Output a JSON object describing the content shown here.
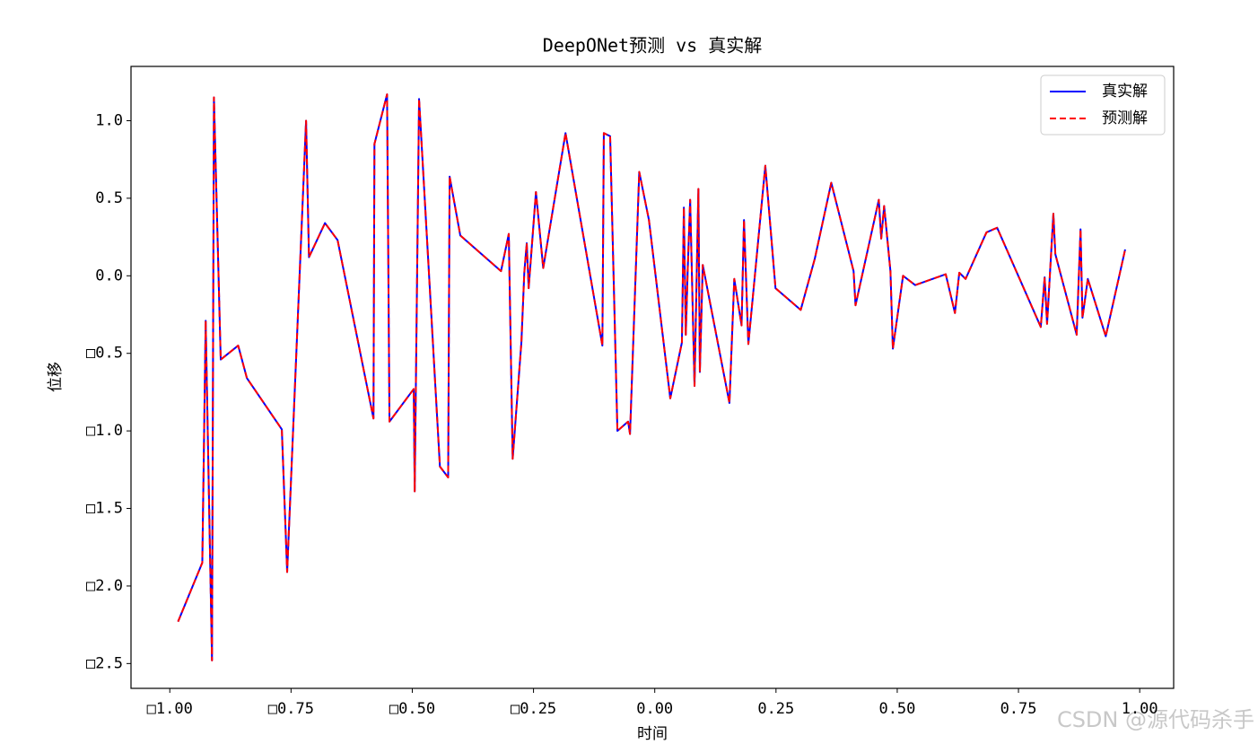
{
  "chart_data": {
    "type": "line",
    "title": "DeepONet预测 vs 真实解",
    "xlabel": "时间",
    "ylabel": "位移",
    "watermark": "CSDN @源代码杀手",
    "legend": "upper right",
    "x": [
      -0.983,
      -0.933,
      -0.926,
      -0.913,
      -0.909,
      -0.895,
      -0.859,
      -0.841,
      -0.769,
      -0.758,
      -0.719,
      -0.713,
      -0.68,
      -0.654,
      -0.58,
      -0.578,
      -0.552,
      -0.547,
      -0.497,
      -0.495,
      -0.486,
      -0.443,
      -0.426,
      -0.423,
      -0.401,
      -0.317,
      -0.301,
      -0.293,
      -0.275,
      -0.269,
      -0.264,
      -0.26,
      -0.245,
      -0.23,
      -0.184,
      -0.108,
      -0.105,
      -0.092,
      -0.077,
      -0.055,
      -0.051,
      -0.032,
      -0.012,
      0.032,
      0.056,
      0.06,
      0.064,
      0.068,
      0.073,
      0.082,
      0.09,
      0.093,
      0.099,
      0.154,
      0.164,
      0.179,
      0.184,
      0.193,
      0.228,
      0.249,
      0.301,
      0.33,
      0.364,
      0.41,
      0.414,
      0.462,
      0.467,
      0.473,
      0.486,
      0.491,
      0.512,
      0.537,
      0.6,
      0.619,
      0.628,
      0.641,
      0.684,
      0.706,
      0.796,
      0.804,
      0.809,
      0.822,
      0.826,
      0.87,
      0.878,
      0.882,
      0.893,
      0.93,
      0.97
    ],
    "series": [
      {
        "name": "真实解",
        "color": "#0000ff",
        "dash": false,
        "values": [
          -2.23,
          -1.85,
          -0.29,
          -2.48,
          1.15,
          -0.54,
          -0.45,
          -0.66,
          -0.99,
          -1.91,
          1.0,
          0.12,
          0.34,
          0.23,
          -0.92,
          0.85,
          1.17,
          -0.94,
          -0.73,
          -1.39,
          1.14,
          -1.23,
          -1.3,
          0.64,
          0.26,
          0.03,
          0.27,
          -1.18,
          -0.43,
          0.02,
          0.21,
          -0.08,
          0.54,
          0.05,
          0.92,
          -0.45,
          0.92,
          0.9,
          -1.0,
          -0.94,
          -1.02,
          0.67,
          0.36,
          -0.79,
          -0.43,
          0.44,
          -0.38,
          0.04,
          0.49,
          -0.71,
          0.56,
          -0.62,
          0.07,
          -0.82,
          -0.02,
          -0.32,
          0.36,
          -0.44,
          0.71,
          -0.08,
          -0.22,
          0.11,
          0.6,
          0.03,
          -0.19,
          0.49,
          0.24,
          0.45,
          0.03,
          -0.47,
          0.0,
          -0.06,
          0.01,
          -0.24,
          0.02,
          -0.02,
          0.28,
          0.31,
          -0.33,
          -0.01,
          -0.31,
          0.4,
          0.14,
          -0.38,
          0.3,
          -0.27,
          -0.02,
          -0.39,
          0.17
        ]
      },
      {
        "name": "预测解",
        "color": "#ff0000",
        "dash": true,
        "values": [
          -2.23,
          -1.85,
          -0.29,
          -2.48,
          1.15,
          -0.54,
          -0.45,
          -0.66,
          -0.99,
          -1.91,
          1.0,
          0.12,
          0.34,
          0.23,
          -0.92,
          0.85,
          1.17,
          -0.94,
          -0.73,
          -1.39,
          1.14,
          -1.23,
          -1.3,
          0.64,
          0.26,
          0.03,
          0.27,
          -1.18,
          -0.43,
          0.02,
          0.21,
          -0.08,
          0.54,
          0.05,
          0.92,
          -0.45,
          0.92,
          0.9,
          -1.0,
          -0.94,
          -1.02,
          0.67,
          0.36,
          -0.79,
          -0.43,
          0.44,
          -0.38,
          0.04,
          0.49,
          -0.71,
          0.56,
          -0.62,
          0.07,
          -0.82,
          -0.02,
          -0.32,
          0.36,
          -0.44,
          0.71,
          -0.08,
          -0.22,
          0.11,
          0.6,
          0.03,
          -0.19,
          0.49,
          0.24,
          0.45,
          0.03,
          -0.47,
          0.0,
          -0.06,
          0.01,
          -0.24,
          0.02,
          -0.02,
          0.28,
          0.31,
          -0.33,
          -0.01,
          -0.31,
          0.4,
          0.14,
          -0.38,
          0.3,
          -0.27,
          -0.02,
          -0.39,
          0.17
        ]
      }
    ],
    "xlim": [
      -1.08,
      1.07
    ],
    "ylim": [
      -2.66,
      1.35
    ],
    "xticks": [
      {
        "value": -1,
        "label": "□1.00"
      },
      {
        "value": -0.75,
        "label": "□0.75"
      },
      {
        "value": -0.5,
        "label": "□0.50"
      },
      {
        "value": -0.25,
        "label": "□0.25"
      },
      {
        "value": 0,
        "label": "0.00"
      },
      {
        "value": 0.25,
        "label": "0.25"
      },
      {
        "value": 0.5,
        "label": "0.50"
      },
      {
        "value": 0.75,
        "label": "0.75"
      },
      {
        "value": 1,
        "label": "1.00"
      }
    ],
    "yticks": [
      {
        "value": 1,
        "label": "1.0"
      },
      {
        "value": 0.5,
        "label": "0.5"
      },
      {
        "value": 0,
        "label": "0.0"
      },
      {
        "value": -0.5,
        "label": "□0.5"
      },
      {
        "value": -1,
        "label": "□1.0"
      },
      {
        "value": -1.5,
        "label": "□1.5"
      },
      {
        "value": -2,
        "label": "□2.0"
      },
      {
        "value": -2.5,
        "label": "□2.5"
      }
    ],
    "grid": false
  }
}
